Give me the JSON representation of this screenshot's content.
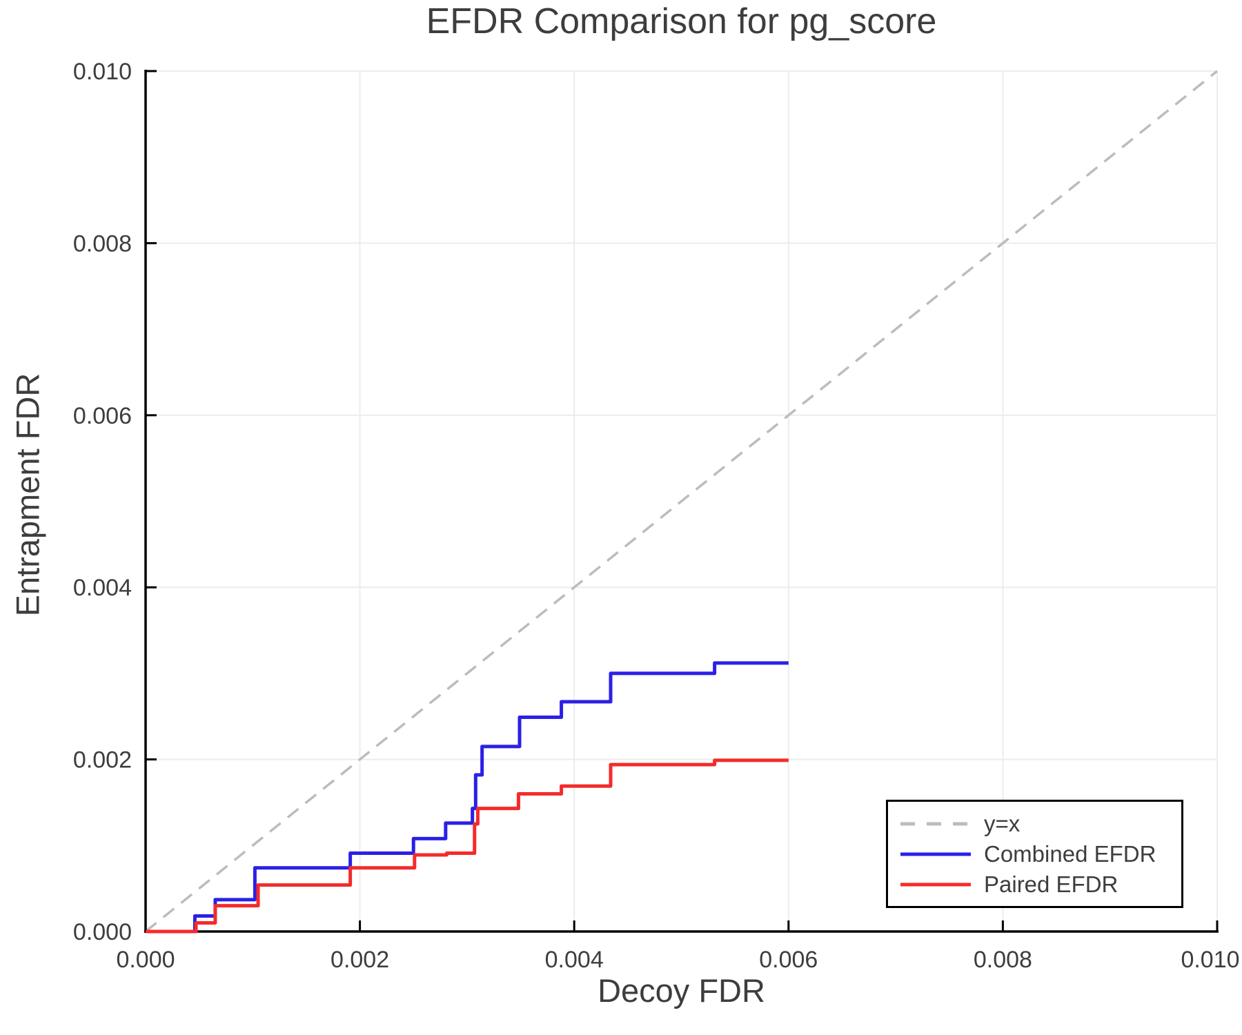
{
  "chart_data": {
    "type": "line",
    "title": "EFDR Comparison for pg_score",
    "xlabel": "Decoy FDR",
    "ylabel": "Entrapment FDR",
    "xlim": [
      0.0,
      0.01
    ],
    "ylim": [
      0.0,
      0.01
    ],
    "grid": true,
    "legend_position": "lower right",
    "x_tick_values": [
      0.0,
      0.002,
      0.004,
      0.006,
      0.008,
      0.01
    ],
    "x_tick_labels": [
      "0.000",
      "0.002",
      "0.004",
      "0.006",
      "0.008",
      "0.010"
    ],
    "y_tick_values": [
      0.0,
      0.002,
      0.004,
      0.006,
      0.008,
      0.01
    ],
    "y_tick_labels": [
      "0.000",
      "0.002",
      "0.004",
      "0.006",
      "0.008",
      "0.010"
    ],
    "series": [
      {
        "name": "y=x",
        "type": "reference-line",
        "style": "dashed",
        "color": "#bcbcbc",
        "points": [
          [
            0.0,
            0.0
          ],
          [
            0.01,
            0.01
          ]
        ]
      },
      {
        "name": "Combined EFDR",
        "type": "step",
        "style": "solid",
        "color": "#2b20e6",
        "start": [
          0.0,
          0.0
        ],
        "steps": [
          [
            0.00046,
            0.00018
          ],
          [
            0.00065,
            0.00037
          ],
          [
            0.00102,
            0.00074
          ],
          [
            0.00191,
            0.00091
          ],
          [
            0.0025,
            0.00108
          ],
          [
            0.0028,
            0.00126
          ],
          [
            0.00305,
            0.00143
          ],
          [
            0.00308,
            0.00182
          ],
          [
            0.00314,
            0.00215
          ],
          [
            0.00349,
            0.00249
          ],
          [
            0.00388,
            0.00267
          ],
          [
            0.00434,
            0.003
          ],
          [
            0.00531,
            0.00312
          ]
        ],
        "end_x": 0.006,
        "final_value": 0.00312
      },
      {
        "name": "Paired EFDR",
        "type": "step",
        "style": "solid",
        "color": "#f42b2b",
        "start": [
          0.0,
          0.0
        ],
        "steps": [
          [
            0.00047,
            0.0001
          ],
          [
            0.00065,
            0.0003
          ],
          [
            0.00105,
            0.00054
          ],
          [
            0.00191,
            0.00074
          ],
          [
            0.00251,
            0.00089
          ],
          [
            0.00281,
            0.00091
          ],
          [
            0.00307,
            0.00125
          ],
          [
            0.0031,
            0.00143
          ],
          [
            0.00348,
            0.0016
          ],
          [
            0.00388,
            0.00169
          ],
          [
            0.00434,
            0.00194
          ],
          [
            0.00531,
            0.00199
          ]
        ],
        "end_x": 0.006,
        "final_value": 0.00199
      }
    ],
    "colors": {
      "grid": "#ececec",
      "spine": "#000000",
      "text": "#3d3d3d",
      "reference": "#bcbcbc",
      "combined": "#2b20e6",
      "paired": "#f42b2b"
    }
  }
}
